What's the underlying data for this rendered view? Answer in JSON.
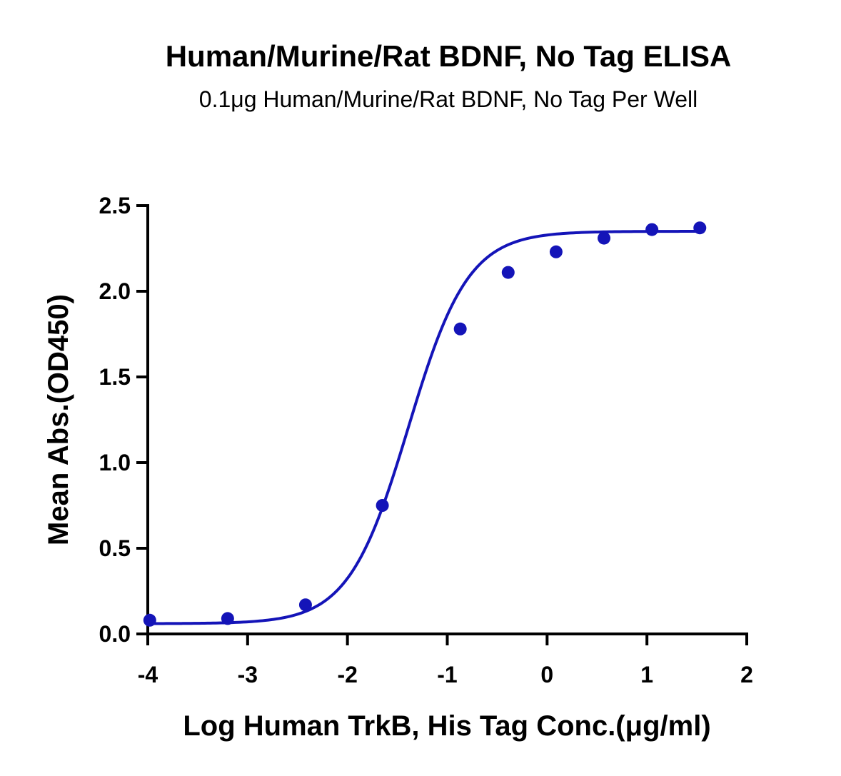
{
  "chart_data": {
    "type": "scatter",
    "title": "Human/Murine/Rat BDNF, No Tag ELISA",
    "subtitle": "0.1μg Human/Murine/Rat BDNF, No Tag Per Well",
    "xlabel": "Log Human TrkB, His Tag Conc.(μg/ml)",
    "ylabel": "Mean Abs.(OD450)",
    "xlim": [
      -4,
      2
    ],
    "ylim": [
      0,
      2.5
    ],
    "x_ticks": [
      "-4",
      "-3",
      "-2",
      "-1",
      "0",
      "1",
      "2"
    ],
    "y_ticks": [
      "0.0",
      "0.5",
      "1.0",
      "1.5",
      "2.0",
      "2.5"
    ],
    "grid": false,
    "series": [
      {
        "x": [
          -3.98,
          -3.2,
          -2.42,
          -1.65,
          -0.87,
          -0.39,
          0.09,
          0.57,
          1.05,
          1.53
        ],
        "y": [
          0.08,
          0.09,
          0.17,
          0.75,
          1.78,
          2.11,
          2.23,
          2.31,
          2.36,
          2.37
        ],
        "color": "#1414b8",
        "fit": {
          "model": "4PL",
          "bottom": 0.06,
          "top": 2.35,
          "logEC50": -1.39,
          "hill": 1.45
        }
      }
    ]
  }
}
